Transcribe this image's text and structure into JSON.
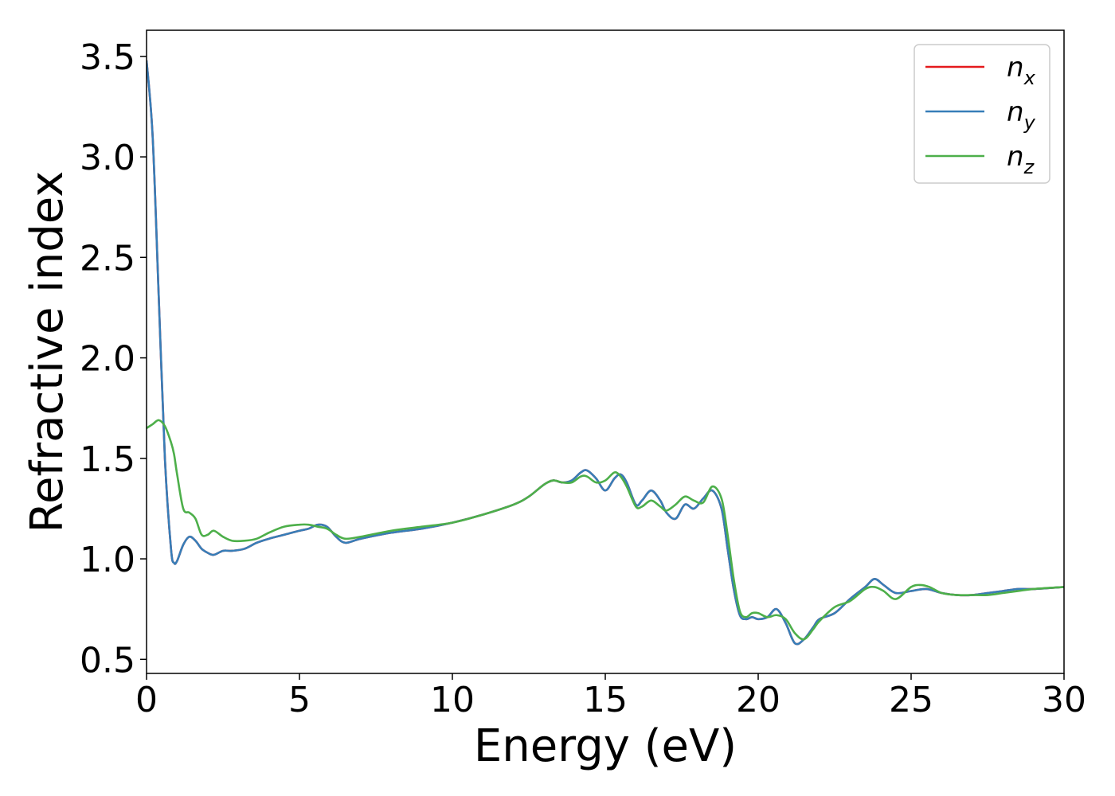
{
  "chart_data": {
    "type": "line",
    "title": "",
    "xlabel": "Energy (eV)",
    "ylabel": "Refractive index",
    "xlim": [
      0,
      30
    ],
    "ylim": [
      0.43,
      3.63
    ],
    "xticks": [
      0,
      5,
      10,
      15,
      20,
      25,
      30
    ],
    "xtick_labels": [
      "0",
      "5",
      "10",
      "15",
      "20",
      "25",
      "30"
    ],
    "yticks": [
      0.5,
      1.0,
      1.5,
      2.0,
      2.5,
      3.0,
      3.5
    ],
    "ytick_labels": [
      "0.5",
      "1.0",
      "1.5",
      "2.0",
      "2.5",
      "3.0",
      "3.5"
    ],
    "grid": false,
    "legend_position": "top-right",
    "series": [
      {
        "name": "n",
        "subscript": "x",
        "color": "#e41a1c",
        "x": [
          0,
          0.2,
          0.4,
          0.6,
          0.8,
          0.9,
          1.0,
          1.2,
          1.4,
          1.6,
          1.8,
          2.0,
          2.2,
          2.5,
          2.8,
          3.2,
          3.6,
          4.0,
          4.5,
          5.0,
          5.3,
          5.6,
          5.9,
          6.2,
          6.5,
          7.0,
          8.0,
          9.0,
          10.0,
          11.0,
          12.0,
          12.5,
          13.0,
          13.3,
          13.6,
          13.9,
          14.2,
          14.4,
          14.7,
          15.0,
          15.3,
          15.5,
          15.7,
          16.0,
          16.2,
          16.5,
          16.8,
          17.0,
          17.3,
          17.6,
          17.9,
          18.2,
          18.5,
          18.8,
          19.0,
          19.2,
          19.4,
          19.6,
          19.8,
          20.0,
          20.3,
          20.6,
          20.9,
          21.2,
          21.5,
          21.8,
          22.0,
          22.5,
          23.0,
          23.5,
          23.8,
          24.1,
          24.5,
          25.0,
          25.5,
          26.0,
          26.5,
          27.0,
          27.5,
          28.0,
          28.5,
          29.0,
          30.0
        ],
        "y": [
          3.48,
          3.1,
          2.3,
          1.5,
          1.05,
          0.98,
          0.99,
          1.07,
          1.11,
          1.09,
          1.05,
          1.03,
          1.02,
          1.04,
          1.04,
          1.05,
          1.08,
          1.1,
          1.12,
          1.14,
          1.15,
          1.17,
          1.16,
          1.11,
          1.08,
          1.1,
          1.13,
          1.15,
          1.18,
          1.22,
          1.27,
          1.31,
          1.37,
          1.39,
          1.38,
          1.39,
          1.43,
          1.44,
          1.4,
          1.34,
          1.4,
          1.42,
          1.38,
          1.27,
          1.29,
          1.34,
          1.29,
          1.23,
          1.2,
          1.27,
          1.25,
          1.3,
          1.34,
          1.25,
          1.05,
          0.85,
          0.72,
          0.7,
          0.71,
          0.7,
          0.71,
          0.75,
          0.68,
          0.58,
          0.6,
          0.66,
          0.7,
          0.73,
          0.8,
          0.86,
          0.9,
          0.87,
          0.83,
          0.84,
          0.85,
          0.83,
          0.82,
          0.82,
          0.83,
          0.84,
          0.85,
          0.85,
          0.86
        ]
      },
      {
        "name": "n",
        "subscript": "y",
        "color": "#377eb8",
        "x": [
          0,
          0.2,
          0.4,
          0.6,
          0.8,
          0.9,
          1.0,
          1.2,
          1.4,
          1.6,
          1.8,
          2.0,
          2.2,
          2.5,
          2.8,
          3.2,
          3.6,
          4.0,
          4.5,
          5.0,
          5.3,
          5.6,
          5.9,
          6.2,
          6.5,
          7.0,
          8.0,
          9.0,
          10.0,
          11.0,
          12.0,
          12.5,
          13.0,
          13.3,
          13.6,
          13.9,
          14.2,
          14.4,
          14.7,
          15.0,
          15.3,
          15.5,
          15.7,
          16.0,
          16.2,
          16.5,
          16.8,
          17.0,
          17.3,
          17.6,
          17.9,
          18.2,
          18.5,
          18.8,
          19.0,
          19.2,
          19.4,
          19.6,
          19.8,
          20.0,
          20.3,
          20.6,
          20.9,
          21.2,
          21.5,
          21.8,
          22.0,
          22.5,
          23.0,
          23.5,
          23.8,
          24.1,
          24.5,
          25.0,
          25.5,
          26.0,
          26.5,
          27.0,
          27.5,
          28.0,
          28.5,
          29.0,
          30.0
        ],
        "y": [
          3.48,
          3.1,
          2.3,
          1.5,
          1.05,
          0.98,
          0.99,
          1.07,
          1.11,
          1.09,
          1.05,
          1.03,
          1.02,
          1.04,
          1.04,
          1.05,
          1.08,
          1.1,
          1.12,
          1.14,
          1.15,
          1.17,
          1.16,
          1.11,
          1.08,
          1.1,
          1.13,
          1.15,
          1.18,
          1.22,
          1.27,
          1.31,
          1.37,
          1.39,
          1.38,
          1.39,
          1.43,
          1.44,
          1.4,
          1.34,
          1.4,
          1.42,
          1.38,
          1.27,
          1.29,
          1.34,
          1.29,
          1.23,
          1.2,
          1.27,
          1.25,
          1.3,
          1.34,
          1.25,
          1.05,
          0.85,
          0.72,
          0.7,
          0.71,
          0.7,
          0.71,
          0.75,
          0.68,
          0.58,
          0.6,
          0.66,
          0.7,
          0.73,
          0.8,
          0.86,
          0.9,
          0.87,
          0.83,
          0.84,
          0.85,
          0.83,
          0.82,
          0.82,
          0.83,
          0.84,
          0.85,
          0.85,
          0.86
        ]
      },
      {
        "name": "n",
        "subscript": "z",
        "color": "#4daf4a",
        "x": [
          0,
          0.2,
          0.4,
          0.6,
          0.8,
          0.9,
          1.0,
          1.2,
          1.4,
          1.6,
          1.8,
          2.0,
          2.2,
          2.5,
          2.8,
          3.2,
          3.6,
          4.0,
          4.5,
          5.0,
          5.3,
          5.6,
          5.9,
          6.2,
          6.5,
          7.0,
          8.0,
          9.0,
          10.0,
          11.0,
          12.0,
          12.5,
          13.0,
          13.3,
          13.6,
          13.9,
          14.2,
          14.4,
          14.7,
          15.0,
          15.3,
          15.5,
          15.7,
          16.0,
          16.2,
          16.5,
          16.8,
          17.0,
          17.3,
          17.6,
          17.9,
          18.2,
          18.5,
          18.8,
          19.0,
          19.2,
          19.4,
          19.6,
          19.8,
          20.0,
          20.3,
          20.6,
          20.9,
          21.2,
          21.5,
          21.8,
          22.0,
          22.5,
          23.0,
          23.5,
          23.8,
          24.1,
          24.5,
          25.0,
          25.3,
          25.6,
          26.0,
          26.5,
          27.0,
          27.5,
          28.0,
          28.5,
          29.0,
          30.0
        ],
        "y": [
          1.65,
          1.67,
          1.69,
          1.66,
          1.58,
          1.52,
          1.42,
          1.25,
          1.23,
          1.2,
          1.12,
          1.12,
          1.14,
          1.11,
          1.09,
          1.09,
          1.1,
          1.13,
          1.16,
          1.17,
          1.17,
          1.16,
          1.15,
          1.12,
          1.1,
          1.11,
          1.14,
          1.16,
          1.18,
          1.22,
          1.27,
          1.31,
          1.37,
          1.39,
          1.38,
          1.38,
          1.41,
          1.41,
          1.38,
          1.39,
          1.43,
          1.41,
          1.36,
          1.26,
          1.26,
          1.29,
          1.26,
          1.24,
          1.27,
          1.31,
          1.29,
          1.28,
          1.36,
          1.3,
          1.12,
          0.9,
          0.74,
          0.71,
          0.73,
          0.73,
          0.71,
          0.72,
          0.7,
          0.63,
          0.6,
          0.65,
          0.69,
          0.76,
          0.79,
          0.85,
          0.86,
          0.84,
          0.8,
          0.86,
          0.87,
          0.86,
          0.83,
          0.82,
          0.82,
          0.82,
          0.83,
          0.84,
          0.85,
          0.86
        ]
      }
    ]
  }
}
